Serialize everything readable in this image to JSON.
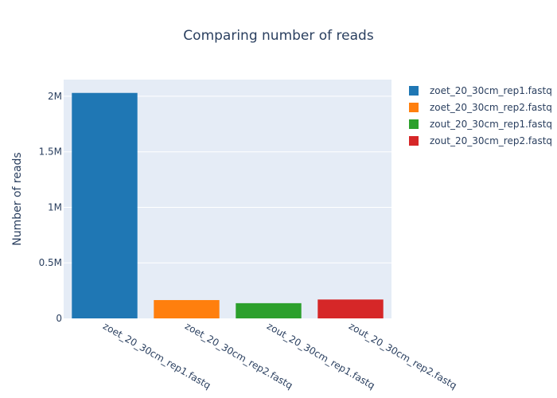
{
  "chart_data": {
    "type": "bar",
    "title": "Comparing number of reads",
    "xlabel": "",
    "ylabel": "Number of reads",
    "categories": [
      "zoet_20_30cm_rep1.fastq",
      "zoet_20_30cm_rep2.fastq",
      "zout_20_30cm_rep1.fastq",
      "zout_20_30cm_rep2.fastq"
    ],
    "values": [
      2030000,
      165000,
      137000,
      170000
    ],
    "colors": [
      "#1f77b4",
      "#ff7f0e",
      "#2ca02c",
      "#d62728"
    ],
    "ylim": [
      0,
      2150000
    ],
    "yticks": [
      0,
      500000,
      1000000,
      1500000,
      2000000
    ],
    "ytick_labels": [
      "0",
      "0.5M",
      "1M",
      "1.5M",
      "2M"
    ],
    "grid": true,
    "background": "#e5ecf6",
    "legend": {
      "placement": "top-right",
      "entries": [
        "zoet_20_30cm_rep1.fastq",
        "zoet_20_30cm_rep2.fastq",
        "zout_20_30cm_rep1.fastq",
        "zout_20_30cm_rep2.fastq"
      ]
    }
  }
}
